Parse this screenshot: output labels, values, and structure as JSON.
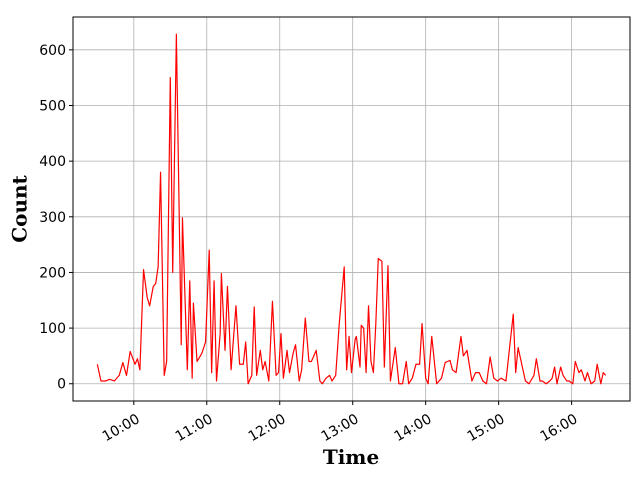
{
  "chart_data": {
    "type": "line",
    "xlabel": "Time",
    "ylabel": "Count",
    "color": "#ff0000",
    "grid": true,
    "xlim": [
      "09:10",
      "16:48"
    ],
    "xticks": [
      "10:00",
      "11:00",
      "12:00",
      "13:00",
      "14:00",
      "15:00",
      "16:00"
    ],
    "ylim": [
      -31,
      659
    ],
    "yticks": [
      0,
      100,
      200,
      300,
      400,
      500,
      600
    ],
    "x": [
      "09:30",
      "09:33",
      "09:37",
      "09:40",
      "09:44",
      "09:48",
      "09:51",
      "09:54",
      "09:57",
      "10:01",
      "10:03",
      "10:05",
      "10:08",
      "10:11",
      "10:13",
      "10:16",
      "10:18",
      "10:20",
      "10:22",
      "10:25",
      "10:27",
      "10:30",
      "10:32",
      "10:35",
      "10:39",
      "10:40",
      "10:44",
      "10:46",
      "10:48",
      "10:49",
      "10:52",
      "10:56",
      "10:59",
      "11:02",
      "11:04",
      "11:06",
      "11:08",
      "11:11",
      "11:12",
      "11:15",
      "11:17",
      "11:20",
      "11:24",
      "11:27",
      "11:30",
      "11:32",
      "11:34",
      "11:37",
      "11:39",
      "11:41",
      "11:44",
      "11:46",
      "11:48",
      "11:51",
      "11:54",
      "11:57",
      "11:59",
      "12:01",
      "12:03",
      "12:06",
      "12:08",
      "12:11",
      "12:13",
      "12:16",
      "12:18",
      "12:21",
      "12:24",
      "12:26",
      "12:30",
      "12:33",
      "12:35",
      "12:38",
      "12:41",
      "12:43",
      "12:46",
      "12:49",
      "12:53",
      "12:55",
      "12:57",
      "12:59",
      "13:02",
      "13:03",
      "13:06",
      "13:07",
      "13:09",
      "13:11",
      "13:13",
      "13:15",
      "13:17",
      "13:19",
      "13:21",
      "13:24",
      "13:26",
      "13:29",
      "13:31",
      "13:35",
      "13:38",
      "13:41",
      "13:44",
      "13:46",
      "13:49",
      "13:52",
      "13:55",
      "13:57",
      "14:00",
      "14:02",
      "14:05",
      "14:09",
      "14:13",
      "14:16",
      "14:20",
      "14:22",
      "14:25",
      "14:29",
      "14:31",
      "14:34",
      "14:38",
      "14:41",
      "14:44",
      "14:47",
      "14:50",
      "14:53",
      "14:56",
      "14:59",
      "15:02",
      "15:06",
      "15:09",
      "15:12",
      "15:14",
      "15:16",
      "15:19",
      "15:22",
      "15:25",
      "15:29",
      "15:31",
      "15:34",
      "15:36",
      "15:39",
      "15:42",
      "15:44",
      "15:46",
      "15:48",
      "15:51",
      "15:53",
      "15:56",
      "15:58",
      "16:01",
      "16:03",
      "16:06",
      "16:08",
      "16:11",
      "16:13",
      "16:16",
      "16:19",
      "16:21",
      "16:24",
      "16:26",
      "16:28"
    ],
    "values": [
      35,
      5,
      5,
      8,
      5,
      15,
      38,
      15,
      58,
      35,
      45,
      25,
      205,
      155,
      140,
      175,
      180,
      210,
      380,
      15,
      40,
      550,
      200,
      628,
      70,
      298,
      25,
      185,
      10,
      145,
      40,
      55,
      75,
      240,
      20,
      185,
      5,
      90,
      198,
      60,
      175,
      25,
      140,
      35,
      35,
      75,
      0,
      15,
      138,
      15,
      60,
      25,
      40,
      5,
      148,
      15,
      20,
      90,
      10,
      60,
      20,
      55,
      70,
      5,
      25,
      118,
      40,
      40,
      60,
      5,
      0,
      10,
      15,
      5,
      15,
      110,
      210,
      25,
      85,
      20,
      80,
      85,
      30,
      105,
      100,
      20,
      140,
      40,
      20,
      108,
      225,
      220,
      30,
      212,
      5,
      65,
      0,
      0,
      40,
      0,
      10,
      35,
      35,
      108,
      10,
      0,
      85,
      0,
      10,
      38,
      42,
      25,
      20,
      85,
      50,
      60,
      5,
      20,
      20,
      5,
      0,
      48,
      10,
      5,
      10,
      5,
      65,
      125,
      20,
      65,
      35,
      5,
      0,
      15,
      45,
      5,
      5,
      0,
      5,
      10,
      30,
      0,
      30,
      15,
      5,
      5,
      0,
      40,
      20,
      25,
      5,
      20,
      0,
      5,
      35,
      0,
      20,
      15
    ]
  }
}
